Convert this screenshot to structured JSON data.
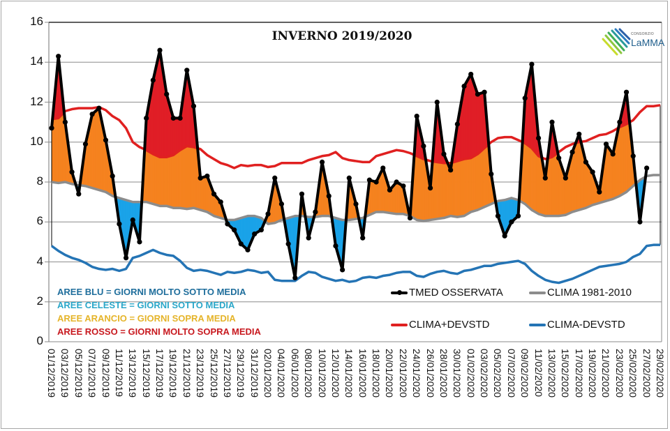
{
  "chart_data": {
    "type": "line",
    "title": "INVERNO 2019/2020",
    "xlabel": "",
    "ylabel": "",
    "ylim": [
      0,
      16
    ],
    "yticks": [
      0,
      2,
      4,
      6,
      8,
      10,
      12,
      14,
      16
    ],
    "grid": true,
    "start_date": "01/12/2019",
    "x_labels": [
      "01/12/2019",
      "03/12/2019",
      "05/12/2019",
      "07/12/2019",
      "09/12/2019",
      "11/12/2019",
      "13/12/2019",
      "15/12/2019",
      "17/12/2019",
      "19/12/2019",
      "21/12/2019",
      "23/12/2019",
      "25/12/2019",
      "27/12/2019",
      "29/12/2019",
      "31/12/2019",
      "02/01/2020",
      "04/01/2020",
      "06/01/2020",
      "08/01/2020",
      "10/01/2020",
      "12/01/2020",
      "14/01/2020",
      "16/01/2020",
      "18/01/2020",
      "20/01/2020",
      "22/01/2020",
      "24/01/2020",
      "26/01/2020",
      "28/01/2020",
      "30/01/2020",
      "01/02/2020",
      "03/02/2020",
      "05/02/2020",
      "07/02/2020",
      "09/02/2020",
      "11/02/2020",
      "13/02/2020",
      "15/02/2020",
      "17/02/2020",
      "19/02/2020",
      "21/02/2020",
      "23/02/2020",
      "25/02/2020",
      "27/02/2020",
      "29/02/2020"
    ],
    "series": [
      {
        "name": "TMED OSSERVATA",
        "color": "#000000",
        "values": [
          10.7,
          14.3,
          11.0,
          8.5,
          7.4,
          9.9,
          11.4,
          11.7,
          10.1,
          8.3,
          5.9,
          4.2,
          6.1,
          5.0,
          11.2,
          13.1,
          14.6,
          12.4,
          11.2,
          11.2,
          13.6,
          11.8,
          8.2,
          8.3,
          7.4,
          7.0,
          5.9,
          5.6,
          4.9,
          4.6,
          5.4,
          5.6,
          6.4,
          8.2,
          6.9,
          4.9,
          3.2,
          7.4,
          5.2,
          6.5,
          9.0,
          7.3,
          4.8,
          3.6,
          8.2,
          6.9,
          5.2,
          8.1,
          8.0,
          8.7,
          7.6,
          8.0,
          7.8,
          6.2,
          11.3,
          9.8,
          7.7,
          12.0,
          9.4,
          8.6,
          10.9,
          12.8,
          13.4,
          12.4,
          12.5,
          8.4,
          6.3,
          5.3,
          6.0,
          6.3,
          12.2,
          13.9,
          10.2,
          8.2,
          11.0,
          9.2,
          8.2,
          9.5,
          10.4,
          9.0,
          8.5,
          7.5,
          9.9,
          9.4,
          11.0,
          12.5,
          9.3,
          6.0,
          8.7,
          null,
          null
        ]
      },
      {
        "name": "CLIMA 1981-2010",
        "color": "#8c8c8c",
        "values": [
          8.0,
          7.95,
          8.0,
          7.9,
          7.85,
          7.8,
          7.7,
          7.6,
          7.5,
          7.3,
          7.2,
          7.1,
          7.0,
          7.0,
          7.0,
          6.9,
          6.8,
          6.8,
          6.7,
          6.7,
          6.65,
          6.7,
          6.6,
          6.5,
          6.3,
          6.2,
          6.1,
          6.1,
          6.2,
          6.3,
          6.3,
          6.2,
          5.9,
          5.95,
          6.1,
          6.2,
          6.3,
          6.3,
          6.25,
          6.25,
          6.3,
          6.3,
          6.2,
          6.1,
          6.1,
          6.15,
          6.2,
          6.35,
          6.5,
          6.5,
          6.45,
          6.4,
          6.4,
          6.3,
          6.1,
          6.05,
          6.1,
          6.15,
          6.2,
          6.3,
          6.25,
          6.3,
          6.5,
          6.6,
          6.75,
          6.9,
          7.05,
          7.1,
          7.2,
          7.1,
          6.9,
          6.6,
          6.4,
          6.3,
          6.3,
          6.3,
          6.35,
          6.5,
          6.6,
          6.7,
          6.85,
          6.95,
          7.05,
          7.15,
          7.3,
          7.5,
          7.8,
          8.1,
          8.3,
          8.35,
          8.35
        ]
      },
      {
        "name": "CLIMA+DEVSTD",
        "color": "#e02020",
        "values": [
          11.15,
          11.2,
          11.55,
          11.65,
          11.7,
          11.7,
          11.7,
          11.75,
          11.6,
          11.3,
          11.1,
          10.7,
          10.0,
          9.75,
          9.6,
          9.4,
          9.25,
          9.25,
          9.35,
          9.6,
          9.8,
          9.75,
          9.65,
          9.35,
          9.15,
          8.95,
          8.85,
          8.7,
          8.85,
          8.8,
          8.85,
          8.85,
          8.75,
          8.8,
          8.95,
          8.95,
          8.95,
          8.95,
          9.1,
          9.2,
          9.3,
          9.35,
          9.5,
          9.2,
          9.1,
          9.05,
          9.0,
          9.0,
          9.3,
          9.4,
          9.5,
          9.6,
          9.55,
          9.45,
          9.3,
          9.15,
          9.05,
          9.0,
          8.95,
          8.95,
          9.05,
          9.15,
          9.2,
          9.4,
          9.7,
          10.0,
          10.2,
          10.25,
          10.25,
          10.1,
          9.95,
          9.7,
          9.3,
          9.15,
          9.25,
          9.5,
          9.75,
          9.9,
          10.0,
          10.05,
          10.2,
          10.35,
          10.4,
          10.55,
          10.75,
          10.9,
          11.1,
          11.5,
          11.8,
          11.8,
          11.85
        ]
      },
      {
        "name": "CLIMA-DEVSTD",
        "color": "#2474b5",
        "values": [
          4.8,
          4.55,
          4.35,
          4.2,
          4.1,
          3.95,
          3.75,
          3.65,
          3.6,
          3.65,
          3.55,
          3.65,
          4.2,
          4.3,
          4.45,
          4.6,
          4.45,
          4.35,
          4.3,
          4.05,
          3.7,
          3.55,
          3.6,
          3.55,
          3.45,
          3.35,
          3.5,
          3.45,
          3.5,
          3.6,
          3.55,
          3.45,
          3.5,
          3.1,
          3.05,
          3.05,
          3.05,
          3.3,
          3.5,
          3.45,
          3.25,
          3.15,
          3.05,
          3.1,
          3.0,
          3.05,
          3.2,
          3.25,
          3.2,
          3.3,
          3.35,
          3.45,
          3.5,
          3.5,
          3.3,
          3.25,
          3.4,
          3.5,
          3.55,
          3.45,
          3.4,
          3.55,
          3.6,
          3.7,
          3.8,
          3.8,
          3.9,
          3.95,
          4.0,
          4.05,
          3.9,
          3.55,
          3.3,
          3.1,
          3.0,
          2.95,
          3.05,
          3.15,
          3.3,
          3.45,
          3.6,
          3.75,
          3.8,
          3.85,
          3.9,
          4.0,
          4.25,
          4.4,
          4.8,
          4.85,
          4.85
        ]
      }
    ],
    "legend": [
      {
        "label": "TMED OSSERVATA",
        "color": "#000000",
        "marker": "dot"
      },
      {
        "label": "CLIMA 1981-2010",
        "color": "#8c8c8c"
      },
      {
        "label": "CLIMA+DEVSTD",
        "color": "#e02020"
      },
      {
        "label": "CLIMA-DEVSTD",
        "color": "#2474b5"
      }
    ],
    "legend_position": "bottom-right",
    "area_colors": {
      "blu": "#1f7bbf",
      "celeste": "#1aa3e8",
      "arancio": "#f5821f",
      "rosso": "#e01e26"
    },
    "annotations": [
      {
        "text": "AREE BLU = GIORNI MOLTO SOTTO MEDIA",
        "color": "#1f6e9c"
      },
      {
        "text": "AREE CELESTE = GIORNI SOTTO MEDIA",
        "color": "#2aa7c9"
      },
      {
        "text": "AREE ARANCIO = GIORNI SOPRA MEDIA",
        "color": "#e5b42a"
      },
      {
        "text": "AREE ROSSO = GIORNI MOLTO SOPRA MEDIA",
        "color": "#c8191f"
      }
    ]
  },
  "logo": {
    "small": "CONSORZIO",
    "name": "LaMMA"
  }
}
